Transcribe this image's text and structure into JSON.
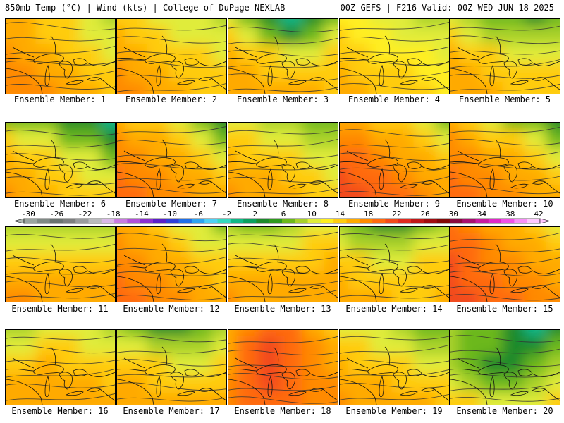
{
  "header": {
    "left": "850mb Temp (°C) | Wind (kts) | College of DuPage NEXLAB",
    "right": "00Z GEFS | F216 Valid: 00Z WED JUN 18 2025"
  },
  "colorbar": {
    "labels": [
      "-30",
      "-26",
      "-22",
      "-18",
      "-14",
      "-10",
      "-6",
      "-2",
      "2",
      "6",
      "10",
      "14",
      "18",
      "22",
      "26",
      "30",
      "34",
      "38",
      "42"
    ],
    "colors": [
      "#9aa4a0",
      "#7f8985",
      "#6a7370",
      "#7d7f80",
      "#9a9c9e",
      "#b9bbbd",
      "#d9b8e8",
      "#c87be0",
      "#b04fd8",
      "#8a2fd0",
      "#5a20c8",
      "#2f3fd8",
      "#1f6fe8",
      "#2ea3f0",
      "#4fd0f5",
      "#35d8c0",
      "#10b888",
      "#0aa060",
      "#1c8a2c",
      "#2f9a1e",
      "#6cb81a",
      "#a8d12a",
      "#e0ec3a",
      "#ffee20",
      "#ffcc10",
      "#ffaa00",
      "#ff8a00",
      "#ff6a10",
      "#f24a1a",
      "#e02a20",
      "#c01818",
      "#a00c10",
      "#820808",
      "#8a0a40",
      "#a81070",
      "#c81aa0",
      "#e028c8",
      "#f050e8",
      "#f890f8",
      "#ffc8ff"
    ]
  },
  "panels": [
    {
      "label": "Ensemble Member: 1",
      "palette": [
        "#6cb81a",
        "#a8d12a",
        "#e0ec3a",
        "#ffcc10",
        "#ffaa00",
        "#ff8a00",
        "#ff6a10"
      ],
      "pattern": [
        [
          4,
          4,
          3,
          3,
          2,
          1
        ],
        [
          4,
          4,
          3,
          3,
          2,
          2
        ],
        [
          5,
          4,
          4,
          3,
          3,
          2
        ],
        [
          5,
          5,
          4,
          4,
          3,
          3
        ],
        [
          5,
          5,
          5,
          4,
          4,
          3
        ]
      ]
    },
    {
      "label": "Ensemble Member: 2",
      "palette": [
        "#6cb81a",
        "#a8d12a",
        "#e0ec3a",
        "#ffcc10",
        "#ffaa00",
        "#ff8a00",
        "#ff6a10"
      ],
      "pattern": [
        [
          3,
          3,
          2,
          2,
          2,
          1
        ],
        [
          4,
          3,
          3,
          2,
          2,
          2
        ],
        [
          4,
          4,
          3,
          3,
          3,
          2
        ],
        [
          5,
          4,
          4,
          3,
          3,
          3
        ],
        [
          5,
          5,
          4,
          4,
          3,
          3
        ]
      ]
    },
    {
      "label": "Ensemble Member: 3",
      "palette": [
        "#10b888",
        "#1c8a2c",
        "#6cb81a",
        "#e0ec3a",
        "#ffcc10",
        "#ffaa00",
        "#ff8a00"
      ],
      "pattern": [
        [
          3,
          2,
          1,
          0,
          1,
          2
        ],
        [
          4,
          3,
          2,
          1,
          2,
          3
        ],
        [
          5,
          4,
          4,
          3,
          3,
          4
        ],
        [
          5,
          5,
          4,
          4,
          4,
          4
        ],
        [
          5,
          5,
          5,
          5,
          5,
          4
        ]
      ]
    },
    {
      "label": "Ensemble Member: 4",
      "palette": [
        "#6cb81a",
        "#a8d12a",
        "#e0ec3a",
        "#ffee20",
        "#ffcc10",
        "#ffaa00",
        "#ff8a00"
      ],
      "pattern": [
        [
          3,
          3,
          2,
          2,
          1,
          1
        ],
        [
          4,
          3,
          3,
          2,
          2,
          2
        ],
        [
          4,
          4,
          3,
          3,
          3,
          2
        ],
        [
          5,
          4,
          4,
          4,
          3,
          3
        ],
        [
          5,
          5,
          4,
          4,
          4,
          3
        ]
      ]
    },
    {
      "label": "Ensemble Member: 5",
      "palette": [
        "#1c8a2c",
        "#6cb81a",
        "#a8d12a",
        "#e0ec3a",
        "#ffcc10",
        "#ffaa00",
        "#ff8a00"
      ],
      "pattern": [
        [
          3,
          2,
          1,
          1,
          0,
          1
        ],
        [
          4,
          3,
          2,
          2,
          2,
          2
        ],
        [
          5,
          4,
          4,
          3,
          3,
          3
        ],
        [
          5,
          5,
          4,
          4,
          4,
          4
        ],
        [
          5,
          5,
          5,
          4,
          4,
          4
        ]
      ]
    },
    {
      "label": "Ensemble Member: 6",
      "palette": [
        "#10b888",
        "#1c8a2c",
        "#6cb81a",
        "#e0ec3a",
        "#ffcc10",
        "#ffaa00",
        "#ff8a00"
      ],
      "pattern": [
        [
          2,
          2,
          2,
          1,
          1,
          0
        ],
        [
          4,
          3,
          3,
          2,
          2,
          1
        ],
        [
          5,
          4,
          4,
          3,
          3,
          2
        ],
        [
          5,
          5,
          4,
          4,
          3,
          3
        ],
        [
          6,
          5,
          5,
          4,
          4,
          4
        ]
      ]
    },
    {
      "label": "Ensemble Member: 7",
      "palette": [
        "#1c8a2c",
        "#6cb81a",
        "#e0ec3a",
        "#ffcc10",
        "#ffaa00",
        "#ff8a00",
        "#ff6a10"
      ],
      "pattern": [
        [
          4,
          3,
          3,
          2,
          1,
          0
        ],
        [
          5,
          4,
          4,
          3,
          2,
          1
        ],
        [
          5,
          5,
          4,
          4,
          3,
          2
        ],
        [
          6,
          5,
          5,
          4,
          4,
          3
        ],
        [
          6,
          6,
          5,
          5,
          4,
          4
        ]
      ]
    },
    {
      "label": "Ensemble Member: 8",
      "palette": [
        "#1c8a2c",
        "#6cb81a",
        "#a8d12a",
        "#e0ec3a",
        "#ffcc10",
        "#ffaa00",
        "#ff8a00"
      ],
      "pattern": [
        [
          3,
          3,
          2,
          2,
          1,
          1
        ],
        [
          4,
          4,
          3,
          3,
          2,
          2
        ],
        [
          5,
          4,
          4,
          4,
          3,
          3
        ],
        [
          5,
          5,
          5,
          4,
          4,
          3
        ],
        [
          6,
          5,
          5,
          5,
          4,
          4
        ]
      ]
    },
    {
      "label": "Ensemble Member: 9",
      "palette": [
        "#6cb81a",
        "#e0ec3a",
        "#ffcc10",
        "#ffaa00",
        "#ff8a00",
        "#ff6a10",
        "#f24a1a"
      ],
      "pattern": [
        [
          3,
          3,
          2,
          2,
          1,
          0
        ],
        [
          4,
          4,
          3,
          3,
          2,
          1
        ],
        [
          5,
          5,
          4,
          3,
          3,
          2
        ],
        [
          6,
          5,
          5,
          4,
          3,
          3
        ],
        [
          6,
          6,
          5,
          5,
          4,
          3
        ]
      ]
    },
    {
      "label": "Ensemble Member: 10",
      "palette": [
        "#1c8a2c",
        "#6cb81a",
        "#e0ec3a",
        "#ffcc10",
        "#ffaa00",
        "#ff8a00",
        "#ff6a10"
      ],
      "pattern": [
        [
          4,
          3,
          2,
          1,
          1,
          0
        ],
        [
          5,
          4,
          3,
          3,
          2,
          1
        ],
        [
          5,
          5,
          4,
          4,
          3,
          2
        ],
        [
          6,
          5,
          5,
          4,
          4,
          3
        ],
        [
          6,
          6,
          5,
          5,
          4,
          4
        ]
      ]
    },
    {
      "label": "Ensemble Member: 11",
      "palette": [
        "#1c8a2c",
        "#6cb81a",
        "#a8d12a",
        "#e0ec3a",
        "#ffcc10",
        "#ffaa00",
        "#ff8a00"
      ],
      "pattern": [
        [
          2,
          2,
          2,
          2,
          2,
          2
        ],
        [
          3,
          3,
          3,
          3,
          3,
          3
        ],
        [
          4,
          4,
          4,
          4,
          4,
          4
        ],
        [
          5,
          5,
          5,
          5,
          5,
          5
        ],
        [
          6,
          6,
          5,
          5,
          5,
          5
        ]
      ]
    },
    {
      "label": "Ensemble Member: 12",
      "palette": [
        "#1c8a2c",
        "#6cb81a",
        "#e0ec3a",
        "#ffcc10",
        "#ffaa00",
        "#ff8a00",
        "#ff6a10"
      ],
      "pattern": [
        [
          4,
          4,
          3,
          2,
          2,
          1
        ],
        [
          5,
          4,
          4,
          3,
          2,
          2
        ],
        [
          5,
          5,
          4,
          4,
          3,
          3
        ],
        [
          6,
          5,
          5,
          4,
          4,
          3
        ],
        [
          6,
          6,
          5,
          5,
          4,
          4
        ]
      ]
    },
    {
      "label": "Ensemble Member: 13",
      "palette": [
        "#1c8a2c",
        "#6cb81a",
        "#a8d12a",
        "#e0ec3a",
        "#ffcc10",
        "#ffaa00",
        "#ff8a00"
      ],
      "pattern": [
        [
          2,
          1,
          1,
          2,
          3,
          3
        ],
        [
          3,
          3,
          3,
          3,
          4,
          4
        ],
        [
          4,
          4,
          4,
          4,
          4,
          5
        ],
        [
          5,
          5,
          5,
          5,
          5,
          5
        ],
        [
          6,
          5,
          5,
          5,
          5,
          5
        ]
      ]
    },
    {
      "label": "Ensemble Member: 14",
      "palette": [
        "#10b888",
        "#1c8a2c",
        "#6cb81a",
        "#a8d12a",
        "#e0ec3a",
        "#ffcc10",
        "#ffaa00"
      ],
      "pattern": [
        [
          3,
          2,
          1,
          1,
          2,
          3
        ],
        [
          4,
          3,
          3,
          3,
          4,
          4
        ],
        [
          5,
          5,
          4,
          4,
          5,
          5
        ],
        [
          6,
          5,
          5,
          5,
          5,
          5
        ],
        [
          6,
          6,
          6,
          5,
          5,
          6
        ]
      ]
    },
    {
      "label": "Ensemble Member: 15",
      "palette": [
        "#6cb81a",
        "#e0ec3a",
        "#ffcc10",
        "#ffaa00",
        "#ff8a00",
        "#ff6a10",
        "#f24a1a"
      ],
      "pattern": [
        [
          5,
          4,
          3,
          3,
          2,
          1
        ],
        [
          5,
          5,
          4,
          3,
          3,
          2
        ],
        [
          6,
          5,
          4,
          4,
          3,
          3
        ],
        [
          6,
          5,
          5,
          4,
          4,
          3
        ],
        [
          6,
          6,
          5,
          5,
          4,
          4
        ]
      ]
    },
    {
      "label": "Ensemble Member: 16",
      "palette": [
        "#1c8a2c",
        "#6cb81a",
        "#a8d12a",
        "#e0ec3a",
        "#ffcc10",
        "#ffaa00",
        "#ff8a00"
      ],
      "pattern": [
        [
          2,
          2,
          3,
          3,
          3,
          2
        ],
        [
          3,
          3,
          4,
          4,
          3,
          3
        ],
        [
          4,
          4,
          5,
          4,
          4,
          4
        ],
        [
          5,
          5,
          5,
          5,
          5,
          4
        ],
        [
          5,
          5,
          5,
          5,
          5,
          5
        ]
      ]
    },
    {
      "label": "Ensemble Member: 17",
      "palette": [
        "#1c8a2c",
        "#6cb81a",
        "#a8d12a",
        "#e0ec3a",
        "#ffcc10",
        "#ffaa00",
        "#ff8a00"
      ],
      "pattern": [
        [
          2,
          1,
          0,
          0,
          1,
          2
        ],
        [
          3,
          3,
          2,
          2,
          2,
          3
        ],
        [
          4,
          4,
          4,
          3,
          3,
          4
        ],
        [
          5,
          5,
          4,
          4,
          4,
          4
        ],
        [
          5,
          5,
          5,
          5,
          5,
          5
        ]
      ]
    },
    {
      "label": "Ensemble Member: 18",
      "palette": [
        "#6cb81a",
        "#e0ec3a",
        "#ffcc10",
        "#ffaa00",
        "#ff8a00",
        "#ff6a10",
        "#f24a1a"
      ],
      "pattern": [
        [
          3,
          4,
          5,
          5,
          3,
          2
        ],
        [
          3,
          5,
          6,
          5,
          4,
          3
        ],
        [
          3,
          5,
          6,
          5,
          4,
          3
        ],
        [
          4,
          5,
          6,
          5,
          4,
          4
        ],
        [
          4,
          5,
          5,
          5,
          4,
          4
        ]
      ]
    },
    {
      "label": "Ensemble Member: 19",
      "palette": [
        "#1c8a2c",
        "#6cb81a",
        "#a8d12a",
        "#e0ec3a",
        "#ffcc10",
        "#ffaa00",
        "#ff8a00"
      ],
      "pattern": [
        [
          3,
          3,
          3,
          2,
          1,
          1
        ],
        [
          4,
          4,
          3,
          3,
          2,
          2
        ],
        [
          5,
          4,
          4,
          4,
          3,
          3
        ],
        [
          5,
          5,
          5,
          4,
          4,
          4
        ],
        [
          6,
          5,
          5,
          5,
          5,
          4
        ]
      ]
    },
    {
      "label": "Ensemble Member: 20",
      "palette": [
        "#10b888",
        "#1c8a2c",
        "#6cb81a",
        "#a8d12a",
        "#e0ec3a",
        "#ffcc10",
        "#ffaa00"
      ],
      "pattern": [
        [
          3,
          2,
          2,
          1,
          0,
          1
        ],
        [
          3,
          2,
          2,
          1,
          1,
          2
        ],
        [
          3,
          2,
          1,
          1,
          2,
          3
        ],
        [
          4,
          3,
          2,
          2,
          3,
          4
        ],
        [
          5,
          5,
          4,
          4,
          4,
          5
        ]
      ]
    }
  ]
}
